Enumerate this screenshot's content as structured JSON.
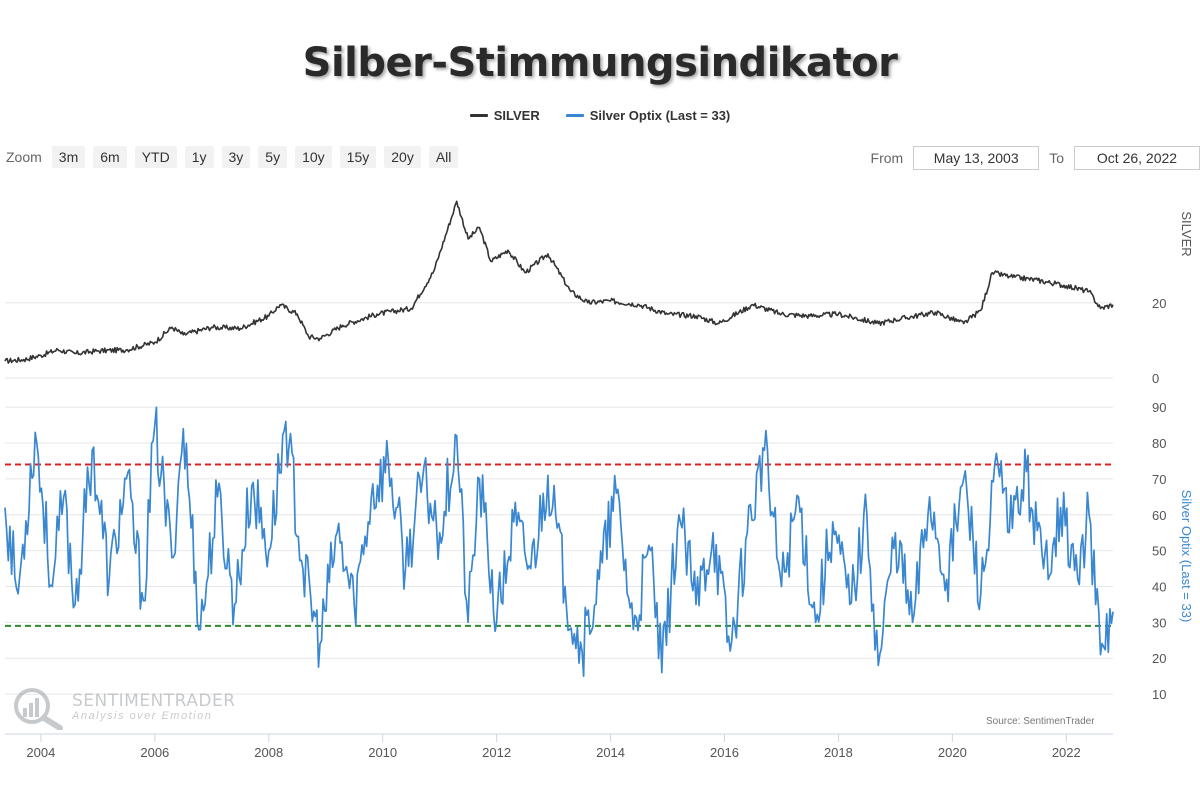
{
  "title": "Silber-Stimmungsindikator",
  "legend": [
    {
      "label": "SILVER",
      "color": "#333333"
    },
    {
      "label": "Silver Optix (Last = 33)",
      "color": "#3a87d1"
    }
  ],
  "zoom": {
    "label": "Zoom",
    "buttons": [
      "3m",
      "6m",
      "YTD",
      "1y",
      "3y",
      "5y",
      "10y",
      "15y",
      "20y",
      "All"
    ]
  },
  "range": {
    "from_label": "From",
    "from_value": "May 13, 2003",
    "to_label": "To",
    "to_value": "Oct 26, 2022"
  },
  "watermark": {
    "name": "SENTIMENTRADER",
    "tagline": "Analysis over Emotion"
  },
  "source": "Source: SentimenTrader",
  "colors": {
    "silver_line": "#333333",
    "optix_line": "#3a87d1",
    "upper_threshold": "#e02020",
    "lower_threshold": "#2e8b2e",
    "grid": "#e6e6e6"
  },
  "chart_data": [
    {
      "type": "line",
      "title": "",
      "series": [
        {
          "name": "SILVER"
        }
      ],
      "ylabel": "SILVER",
      "yticks": [
        0,
        20
      ],
      "xlim": [
        2003.37,
        2022.82
      ],
      "ylim": [
        0,
        50
      ],
      "x": [
        2003.37,
        2003.7,
        2004.0,
        2004.3,
        2004.6,
        2005.0,
        2005.5,
        2006.0,
        2006.3,
        2006.5,
        2007.0,
        2007.5,
        2008.0,
        2008.2,
        2008.5,
        2008.7,
        2008.9,
        2009.3,
        2009.9,
        2010.5,
        2010.9,
        2011.3,
        2011.5,
        2011.7,
        2011.9,
        2012.2,
        2012.5,
        2012.9,
        2013.3,
        2013.6,
        2014.0,
        2014.5,
        2015.0,
        2015.5,
        2015.9,
        2016.5,
        2017.0,
        2017.5,
        2018.0,
        2018.7,
        2019.0,
        2019.7,
        2020.2,
        2020.5,
        2020.7,
        2021.0,
        2021.5,
        2022.0,
        2022.4,
        2022.6,
        2022.82
      ],
      "y": [
        4.5,
        4.9,
        6.0,
        7.5,
        6.5,
        7.2,
        7.5,
        9.5,
        13.5,
        11.5,
        13.5,
        13.2,
        16.5,
        19.5,
        17.0,
        11.0,
        10.5,
        14.0,
        17.0,
        18.5,
        28.5,
        47.0,
        37.0,
        40.0,
        31.0,
        34.0,
        28.0,
        33.0,
        23.0,
        20.0,
        20.5,
        19.5,
        17.0,
        16.5,
        14.5,
        19.5,
        17.0,
        16.5,
        17.0,
        14.5,
        15.5,
        17.5,
        14.5,
        18.0,
        28.0,
        27.0,
        26.0,
        24.5,
        23.0,
        18.5,
        19.5
      ]
    },
    {
      "type": "line",
      "title": "",
      "series": [
        {
          "name": "Silver Optix (Last = 33)"
        }
      ],
      "ylabel": "Silver Optix (Last = 33)",
      "yticks": [
        10,
        20,
        30,
        40,
        50,
        60,
        70,
        80,
        90
      ],
      "xlim": [
        2003.37,
        2022.82
      ],
      "ylim": [
        5,
        92
      ],
      "upper_threshold": 74,
      "lower_threshold": 29,
      "x": [
        2003.37,
        2003.6,
        2003.9,
        2004.2,
        2004.4,
        2004.6,
        2004.9,
        2005.2,
        2005.5,
        2005.8,
        2006.0,
        2006.3,
        2006.5,
        2006.8,
        2007.1,
        2007.4,
        2007.7,
        2008.0,
        2008.3,
        2008.6,
        2008.9,
        2009.2,
        2009.5,
        2009.8,
        2010.1,
        2010.4,
        2010.7,
        2011.0,
        2011.3,
        2011.5,
        2011.7,
        2012.0,
        2012.3,
        2012.6,
        2012.9,
        2013.2,
        2013.5,
        2013.8,
        2014.1,
        2014.4,
        2014.7,
        2014.9,
        2015.2,
        2015.5,
        2015.8,
        2016.1,
        2016.4,
        2016.7,
        2017.0,
        2017.3,
        2017.6,
        2017.9,
        2018.2,
        2018.5,
        2018.7,
        2019.0,
        2019.3,
        2019.6,
        2019.9,
        2020.2,
        2020.5,
        2020.8,
        2021.0,
        2021.3,
        2021.6,
        2021.9,
        2022.2,
        2022.4,
        2022.6,
        2022.82
      ],
      "y": [
        62,
        38,
        83,
        40,
        65,
        35,
        78,
        42,
        70,
        36,
        85,
        48,
        84,
        28,
        65,
        35,
        68,
        50,
        86,
        45,
        24,
        55,
        35,
        65,
        75,
        45,
        70,
        55,
        82,
        30,
        70,
        30,
        58,
        45,
        71,
        40,
        22,
        42,
        66,
        28,
        50,
        16,
        60,
        35,
        55,
        22,
        55,
        78,
        40,
        65,
        30,
        58,
        35,
        60,
        18,
        55,
        30,
        65,
        42,
        70,
        38,
        74,
        55,
        72,
        45,
        62,
        42,
        60,
        21,
        33
      ]
    }
  ],
  "x_axis": {
    "tick_values": [
      2004,
      2006,
      2008,
      2010,
      2012,
      2014,
      2016,
      2018,
      2020,
      2022
    ],
    "tick_labels": [
      "2004",
      "2006",
      "2008",
      "2010",
      "2012",
      "2014",
      "2016",
      "2018",
      "2020",
      "2022"
    ]
  }
}
